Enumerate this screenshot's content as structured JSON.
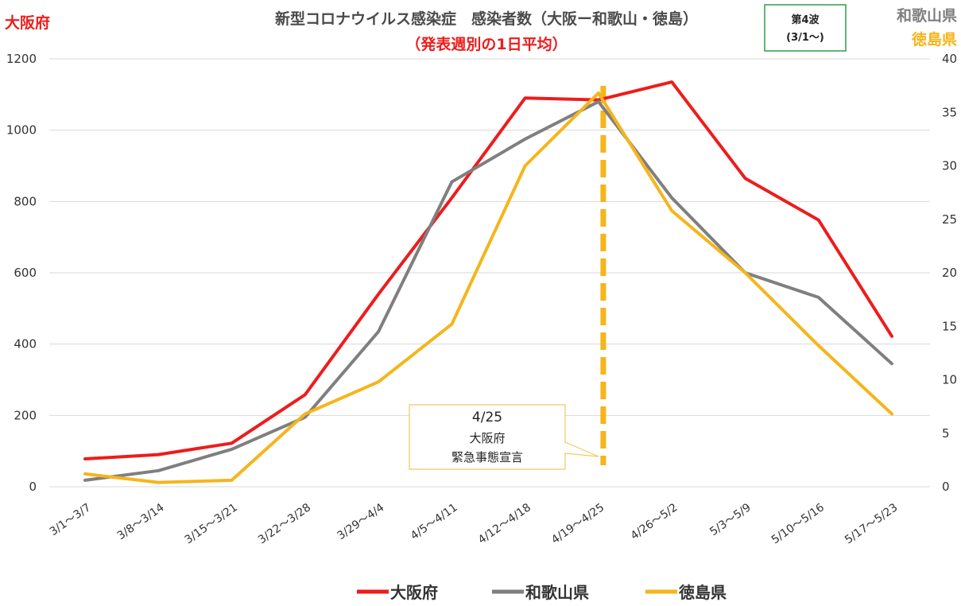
{
  "chart_data": {
    "type": "line",
    "title": "新型コロナウイルス感染症　感染者数（大阪ー和歌山・徳島）",
    "subtitle": "（発表週別の1日平均）",
    "left_axis_label": "大阪府",
    "right_axis_label_1": "和歌山県",
    "right_axis_label_2": "徳島県",
    "wave_box": {
      "line1": "第4波",
      "line2": "(3/1～)"
    },
    "categories": [
      "3/1～3/7",
      "3/8～3/14",
      "3/15～3/21",
      "3/22～3/28",
      "3/29～4/4",
      "4/5～4/11",
      "4/12～4/18",
      "4/19～4/25",
      "4/26～5/2",
      "5/3～5/9",
      "5/10～5/16",
      "5/17～5/23"
    ],
    "y_left": {
      "range": [
        0,
        1200
      ],
      "ticks": [
        "0",
        "200",
        "400",
        "600",
        "800",
        "1000",
        "1200"
      ]
    },
    "y_right": {
      "range": [
        0,
        40
      ],
      "ticks": [
        "0",
        "5",
        "10",
        "15",
        "20",
        "25",
        "30",
        "35",
        "40"
      ]
    },
    "grid": true,
    "legend_position": "bottom",
    "series": [
      {
        "name": "大阪府",
        "axis": "left",
        "color": "#ee1c1c",
        "values": [
          78,
          90,
          122,
          258,
          540,
          810,
          1090,
          1085,
          1135,
          865,
          748,
          422
        ]
      },
      {
        "name": "和歌山県",
        "axis": "right",
        "color": "#7f7f7f",
        "values": [
          0.6,
          1.5,
          3.5,
          6.5,
          14.5,
          28.5,
          32.5,
          36.0,
          27.0,
          20.0,
          17.7,
          11.5
        ]
      },
      {
        "name": "徳島県",
        "axis": "right",
        "color": "#f5b51b",
        "values": [
          1.2,
          0.4,
          0.6,
          6.8,
          9.8,
          15.2,
          30.0,
          36.8,
          25.8,
          20.0,
          13.2,
          6.8
        ]
      }
    ],
    "annotation": {
      "x_category": "4/19～4/25",
      "date": "4/25",
      "line2": "大阪府",
      "line3": "緊急事態宣言",
      "color": "#f5b51b"
    }
  }
}
